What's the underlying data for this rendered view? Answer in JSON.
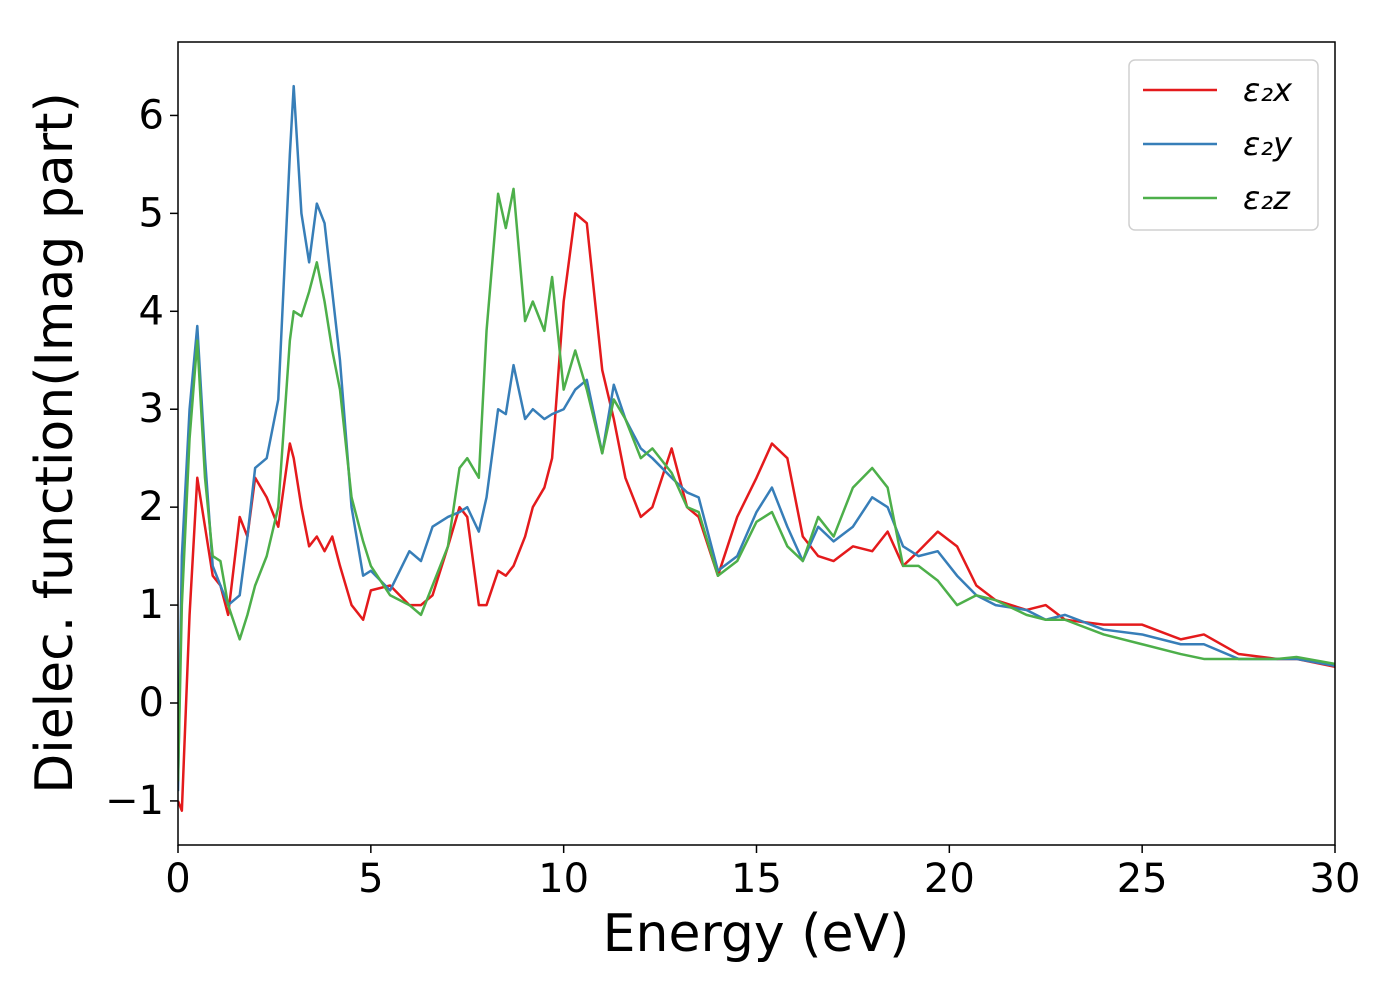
{
  "chart_data": {
    "type": "line",
    "xlabel": "Energy (eV)",
    "ylabel": "Dielec. function(Imag part)",
    "x": [
      0,
      0.1,
      0.3,
      0.5,
      0.7,
      0.9,
      1.1,
      1.3,
      1.6,
      1.8,
      2.0,
      2.3,
      2.6,
      2.9,
      3.0,
      3.2,
      3.4,
      3.6,
      3.8,
      4.0,
      4.2,
      4.5,
      4.8,
      5.0,
      5.5,
      6.0,
      6.3,
      6.6,
      7.0,
      7.3,
      7.5,
      7.8,
      8.0,
      8.3,
      8.5,
      8.7,
      9.0,
      9.2,
      9.5,
      9.7,
      10.0,
      10.3,
      10.6,
      11.0,
      11.3,
      11.6,
      12.0,
      12.3,
      12.8,
      13.2,
      13.5,
      14.0,
      14.5,
      15.0,
      15.4,
      15.8,
      16.2,
      16.6,
      17.0,
      17.5,
      18.0,
      18.4,
      18.8,
      19.2,
      19.7,
      20.2,
      20.7,
      21.2,
      22.0,
      22.5,
      23.0,
      24.0,
      25.0,
      26.0,
      26.6,
      27.5,
      28.5,
      29.0,
      30.0
    ],
    "series": [
      {
        "name": "ε₂x",
        "color": "#e41a1c",
        "values": [
          -1.0,
          -1.1,
          0.9,
          2.3,
          1.8,
          1.3,
          1.2,
          0.9,
          1.9,
          1.7,
          2.3,
          2.1,
          1.8,
          2.65,
          2.5,
          2.0,
          1.6,
          1.7,
          1.55,
          1.7,
          1.4,
          1.0,
          0.85,
          1.15,
          1.2,
          1.0,
          1.0,
          1.1,
          1.6,
          2.0,
          1.9,
          1.0,
          1.0,
          1.35,
          1.3,
          1.4,
          1.7,
          2.0,
          2.2,
          2.5,
          4.1,
          5.0,
          4.9,
          3.4,
          2.9,
          2.3,
          1.9,
          2.0,
          2.6,
          2.0,
          1.9,
          1.3,
          1.9,
          2.3,
          2.65,
          2.5,
          1.7,
          1.5,
          1.45,
          1.6,
          1.55,
          1.75,
          1.4,
          1.55,
          1.75,
          1.6,
          1.2,
          1.05,
          0.95,
          1.0,
          0.85,
          0.8,
          0.8,
          0.65,
          0.7,
          0.5,
          0.45,
          0.45,
          0.37
        ]
      },
      {
        "name": "ε₂y",
        "color": "#377eb8",
        "values": [
          -0.9,
          1.5,
          3.0,
          3.85,
          2.5,
          1.4,
          1.2,
          1.0,
          1.1,
          1.7,
          2.4,
          2.5,
          3.1,
          5.6,
          6.3,
          5.0,
          4.5,
          5.1,
          4.9,
          4.2,
          3.5,
          2.0,
          1.3,
          1.35,
          1.15,
          1.55,
          1.45,
          1.8,
          1.9,
          1.95,
          2.0,
          1.75,
          2.1,
          3.0,
          2.95,
          3.45,
          2.9,
          3.0,
          2.9,
          2.95,
          3.0,
          3.2,
          3.3,
          2.55,
          3.25,
          2.9,
          2.6,
          2.5,
          2.3,
          2.15,
          2.1,
          1.35,
          1.5,
          1.95,
          2.2,
          1.8,
          1.45,
          1.8,
          1.65,
          1.8,
          2.1,
          2.0,
          1.6,
          1.5,
          1.55,
          1.3,
          1.1,
          1.0,
          0.95,
          0.85,
          0.9,
          0.75,
          0.7,
          0.6,
          0.6,
          0.45,
          0.45,
          0.45,
          0.38
        ]
      },
      {
        "name": "ε₂z",
        "color": "#4daf4a",
        "values": [
          -0.8,
          1.0,
          2.7,
          3.7,
          2.3,
          1.5,
          1.45,
          1.0,
          0.65,
          0.9,
          1.2,
          1.5,
          2.0,
          3.7,
          4.0,
          3.95,
          4.2,
          4.5,
          4.1,
          3.6,
          3.2,
          2.1,
          1.65,
          1.4,
          1.1,
          1.0,
          0.9,
          1.2,
          1.6,
          2.4,
          2.5,
          2.3,
          3.8,
          5.2,
          4.85,
          5.25,
          3.9,
          4.1,
          3.8,
          4.35,
          3.2,
          3.6,
          3.2,
          2.55,
          3.1,
          2.9,
          2.5,
          2.6,
          2.35,
          2.0,
          1.95,
          1.3,
          1.45,
          1.85,
          1.95,
          1.6,
          1.45,
          1.9,
          1.7,
          2.2,
          2.4,
          2.2,
          1.4,
          1.4,
          1.25,
          1.0,
          1.1,
          1.05,
          0.9,
          0.85,
          0.85,
          0.7,
          0.6,
          0.5,
          0.45,
          0.45,
          0.45,
          0.47,
          0.4
        ]
      }
    ],
    "xlim": [
      0,
      30
    ],
    "xticks": [
      0,
      5,
      10,
      15,
      20,
      25,
      30
    ],
    "ylim": [
      -1.45,
      6.75
    ],
    "yticks": [
      {
        "value": -1,
        "label": "−1"
      },
      0,
      1,
      2,
      3,
      4,
      5,
      6
    ],
    "legend": "upper right"
  }
}
